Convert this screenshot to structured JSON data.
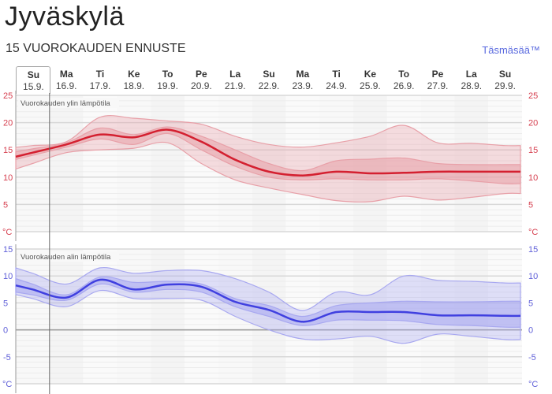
{
  "header": {
    "title": "Jyväskylä",
    "subtitle": "15 VUOROKAUDEN ENNUSTE",
    "brand_link": "Täsmäsää™"
  },
  "days": [
    {
      "weekday": "Su",
      "date": "15.9.",
      "selected": true
    },
    {
      "weekday": "Ma",
      "date": "16.9."
    },
    {
      "weekday": "Ti",
      "date": "17.9."
    },
    {
      "weekday": "Ke",
      "date": "18.9."
    },
    {
      "weekday": "To",
      "date": "19.9."
    },
    {
      "weekday": "Pe",
      "date": "20.9."
    },
    {
      "weekday": "La",
      "date": "21.9."
    },
    {
      "weekday": "Su",
      "date": "22.9."
    },
    {
      "weekday": "Ma",
      "date": "23.9."
    },
    {
      "weekday": "Ti",
      "date": "24.9."
    },
    {
      "weekday": "Ke",
      "date": "25.9."
    },
    {
      "weekday": "To",
      "date": "26.9."
    },
    {
      "weekday": "Pe",
      "date": "27.9."
    },
    {
      "weekday": "La",
      "date": "28.9."
    },
    {
      "weekday": "Su",
      "date": "29.9."
    }
  ],
  "colors": {
    "max_line": "#d42030",
    "max_band": "#e8a0a8",
    "min_line": "#4040e0",
    "min_band": "#a8a8f0",
    "link": "#5a6adf"
  },
  "chart_data": [
    {
      "type": "area",
      "title": "Vuorokauden ylin lämpötila",
      "ylabel": "°C",
      "unit_label": "°C",
      "ylim": [
        0,
        25
      ],
      "yticks": [
        25,
        20,
        15,
        10,
        5
      ],
      "grid": true,
      "x": [
        "15.9.",
        "16.9.",
        "17.9.",
        "18.9.",
        "19.9.",
        "20.9.",
        "21.9.",
        "22.9.",
        "23.9.",
        "24.9.",
        "25.9.",
        "26.9.",
        "27.9.",
        "28.9.",
        "29.9."
      ],
      "series": [
        {
          "name": "median",
          "values": [
            14.5,
            16,
            17.8,
            17.3,
            18.7,
            16.5,
            13.2,
            11,
            10.3,
            11,
            10.7,
            10.8,
            11,
            11,
            11
          ]
        },
        {
          "name": "inner_upper",
          "values": [
            15.2,
            16.3,
            19,
            17.8,
            19.2,
            17.5,
            15,
            12.5,
            11.2,
            13,
            13.3,
            13.5,
            12.5,
            12.3,
            12.3
          ]
        },
        {
          "name": "inner_lower",
          "values": [
            14,
            15.5,
            17,
            16,
            18,
            15,
            12,
            10,
            9.5,
            9.7,
            9.5,
            9.5,
            9.7,
            9.3,
            8.8
          ]
        },
        {
          "name": "outer_upper",
          "values": [
            15.8,
            16.5,
            21,
            20.8,
            20.3,
            19.7,
            17.5,
            16,
            15.5,
            16.3,
            17.5,
            19.5,
            16.3,
            16.2,
            15.8
          ]
        },
        {
          "name": "outer_lower",
          "values": [
            12.5,
            14.5,
            15,
            15.3,
            16.3,
            12.5,
            9.5,
            8,
            6.8,
            5.7,
            5.5,
            6.5,
            5.8,
            6.3,
            7
          ]
        }
      ]
    },
    {
      "type": "area",
      "title": "Vuorokauden alin lämpötila",
      "ylabel": "°C",
      "unit_label": "°C",
      "ylim": [
        -10,
        15
      ],
      "yticks": [
        15,
        10,
        5,
        0,
        -5
      ],
      "grid": true,
      "x": [
        "15.9.",
        "16.9.",
        "17.9.",
        "18.9.",
        "19.9.",
        "20.9.",
        "21.9.",
        "22.9.",
        "23.9.",
        "24.9.",
        "25.9.",
        "26.9.",
        "27.9.",
        "28.9.",
        "29.9."
      ],
      "series": [
        {
          "name": "median",
          "values": [
            7.5,
            6,
            9.3,
            7.5,
            8.4,
            8,
            5.2,
            3.7,
            1.5,
            3.3,
            3.3,
            3.3,
            2.7,
            2.7,
            2.6
          ]
        },
        {
          "name": "inner_upper",
          "values": [
            8.5,
            6.5,
            9.8,
            8.8,
            9,
            8.5,
            5.8,
            4.5,
            2.5,
            4.5,
            5,
            5.3,
            5.2,
            5.2,
            5.3
          ]
        },
        {
          "name": "inner_lower",
          "values": [
            6.5,
            5.5,
            8.5,
            7,
            7.5,
            7,
            4.3,
            2.5,
            0.8,
            1.8,
            1.8,
            1.7,
            1,
            0.8,
            0.5
          ]
        },
        {
          "name": "outer_upper",
          "values": [
            10.5,
            8.5,
            11.5,
            10.5,
            11,
            11,
            9.5,
            7,
            3.6,
            7,
            6.5,
            10,
            9.2,
            9,
            8.7
          ]
        },
        {
          "name": "outer_lower",
          "values": [
            5.8,
            4.3,
            7.3,
            5.8,
            5.8,
            5.5,
            2.5,
            0,
            -1.7,
            -1.7,
            -1.2,
            -2.5,
            -0.8,
            -1.2,
            -1.8
          ]
        }
      ]
    }
  ]
}
